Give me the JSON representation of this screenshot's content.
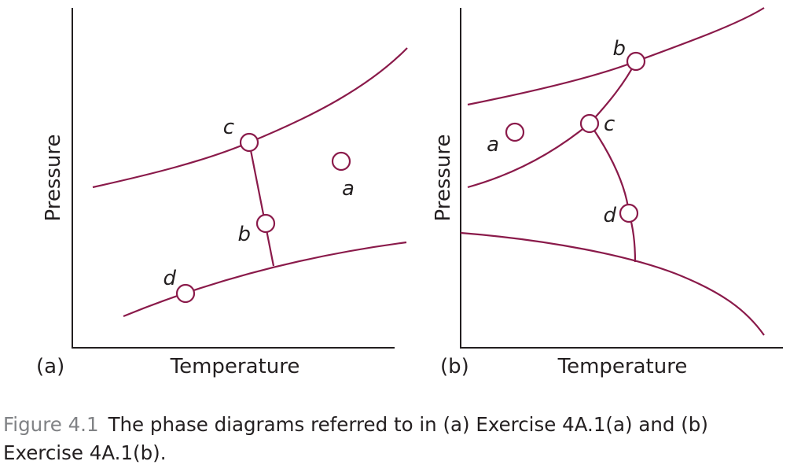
{
  "panel_a": {
    "tag": "(a)",
    "xlabel": "Temperature",
    "ylabel": "Pressure",
    "points": {
      "a": "a",
      "b": "b",
      "c": "c",
      "d": "d"
    }
  },
  "panel_b": {
    "tag": "(b)",
    "xlabel": "Temperature",
    "ylabel": "Pressure",
    "points": {
      "a": "a",
      "b": "b",
      "c": "c",
      "d": "d"
    }
  },
  "caption": {
    "figure_number": "Figure 4.1",
    "text": "The phase diagrams referred to in (a) Exercise 4A.1(a) and (b) Exercise 4A.1(b)."
  },
  "colors": {
    "curve": "#8a1a4a",
    "axis": "#231f20",
    "caption_label": "#808285"
  }
}
